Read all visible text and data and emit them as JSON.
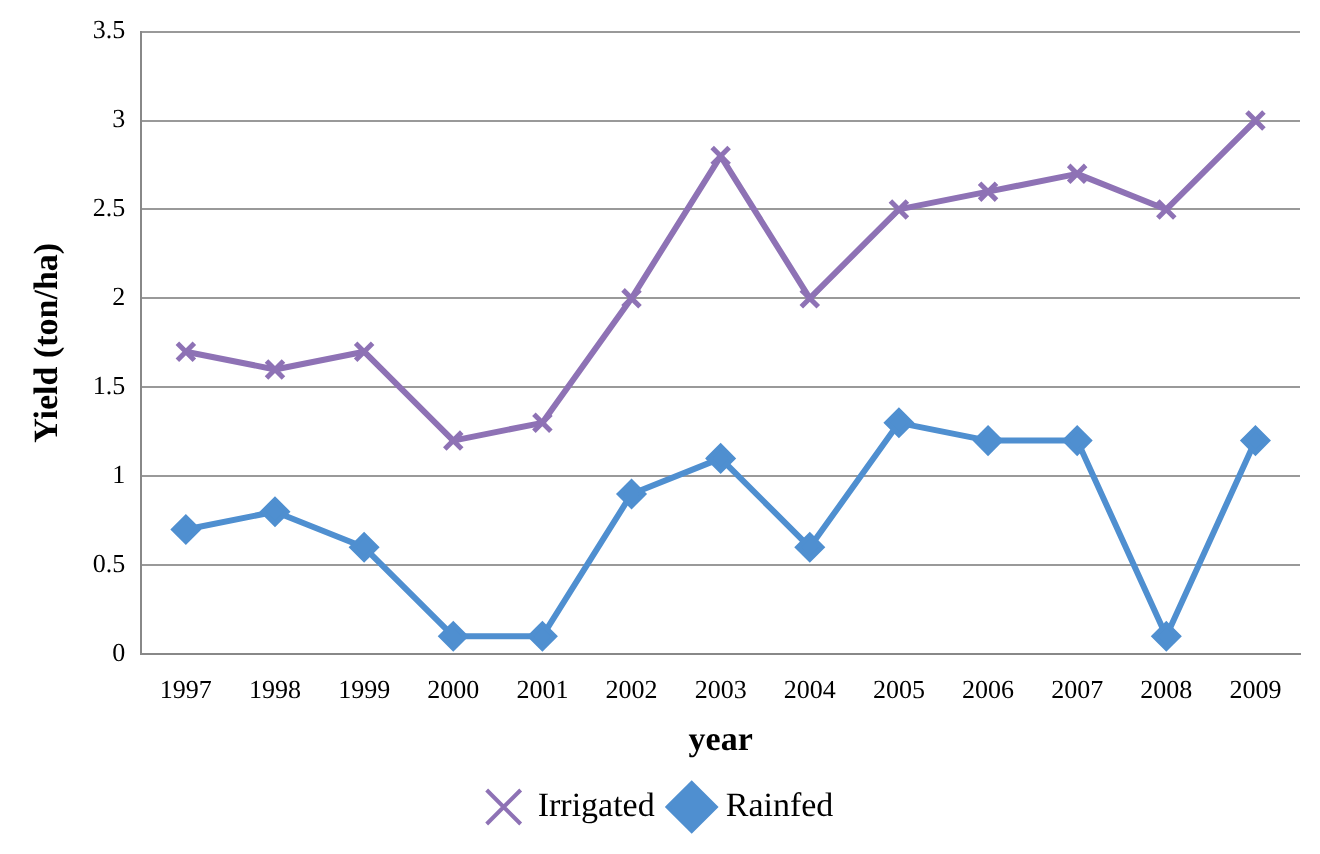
{
  "chart_data": {
    "type": "line",
    "xlabel": "year",
    "ylabel": "Yield (ton/ha)",
    "categories": [
      "1997",
      "1998",
      "1999",
      "2000",
      "2001",
      "2002",
      "2003",
      "2004",
      "2005",
      "2006",
      "2007",
      "2008",
      "2009"
    ],
    "series": [
      {
        "name": "Irrigated",
        "color": "#8e72b5",
        "marker": "cross",
        "values": [
          1.7,
          1.6,
          1.7,
          1.2,
          1.3,
          2.0,
          2.8,
          2.0,
          2.5,
          2.6,
          2.7,
          2.5,
          3.0
        ]
      },
      {
        "name": "Rainfed",
        "color": "#4f8fd0",
        "marker": "diamond",
        "values": [
          0.7,
          0.8,
          0.6,
          0.1,
          0.1,
          0.9,
          1.1,
          0.6,
          1.3,
          1.2,
          1.2,
          0.1,
          1.2
        ]
      }
    ],
    "ylim": [
      0,
      3.5
    ],
    "yticks": [
      0,
      0.5,
      1,
      1.5,
      2,
      2.5,
      3,
      3.5
    ],
    "grid": "y",
    "legend": "bottom",
    "line_style": "solid"
  }
}
